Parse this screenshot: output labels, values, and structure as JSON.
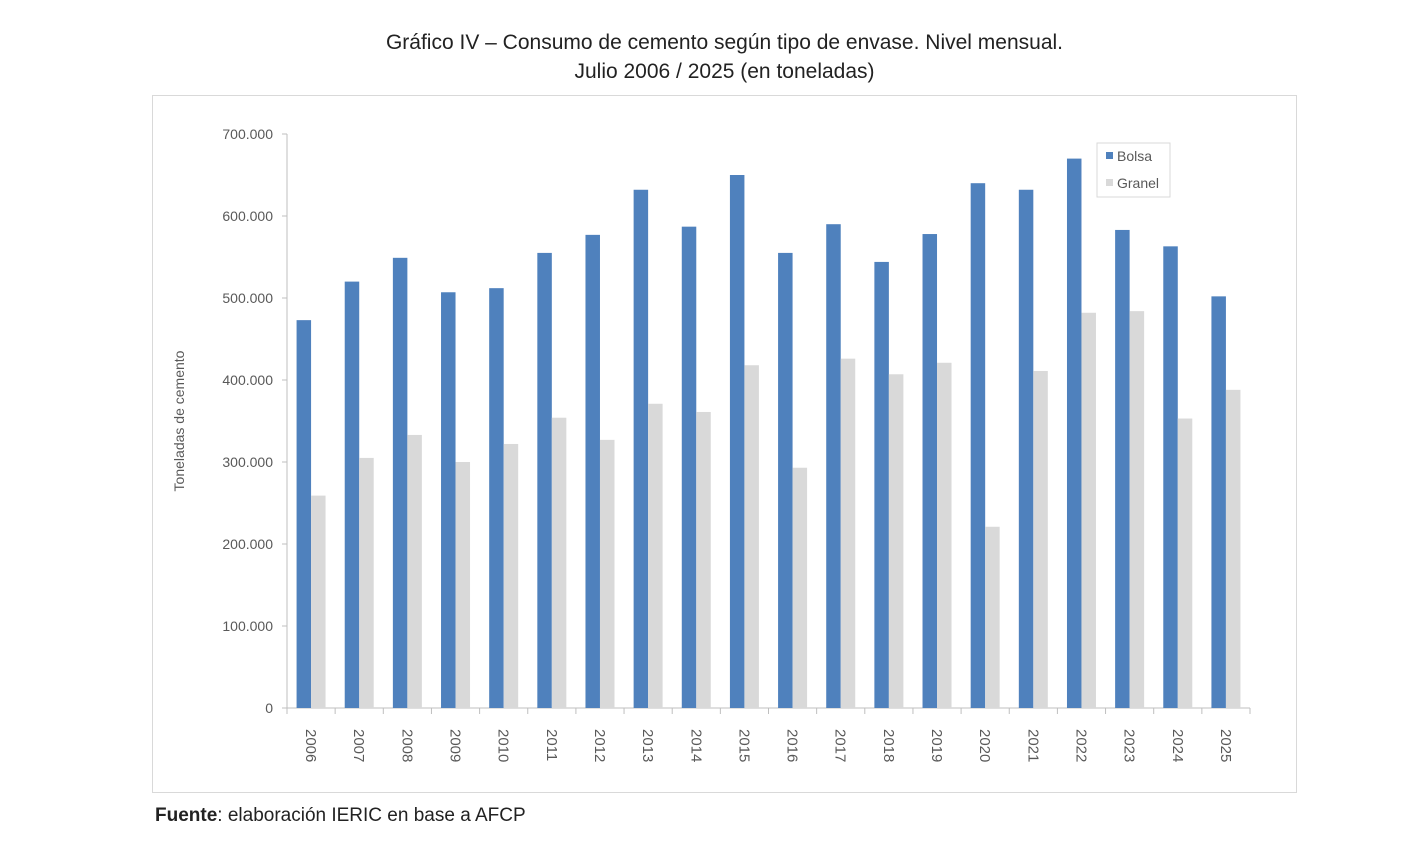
{
  "chart_data": {
    "type": "bar",
    "title": "Gráfico IV – Consumo de cemento según tipo de envase. Nivel mensual.",
    "subtitle": "Julio 2006 / 2025 (en toneladas)",
    "xlabel": "",
    "ylabel": "Toneladas de cemento",
    "ylim": [
      0,
      700000
    ],
    "yticks": [
      0,
      100000,
      200000,
      300000,
      400000,
      500000,
      600000,
      700000
    ],
    "ytick_labels": [
      "0",
      "100.000",
      "200.000",
      "300.000",
      "400.000",
      "500.000",
      "600.000",
      "700.000"
    ],
    "grid": false,
    "legend_position": "top-right",
    "categories": [
      "2006",
      "2007",
      "2008",
      "2009",
      "2010",
      "2011",
      "2012",
      "2013",
      "2014",
      "2015",
      "2016",
      "2017",
      "2018",
      "2019",
      "2020",
      "2021",
      "2022",
      "2023",
      "2024",
      "2025"
    ],
    "series": [
      {
        "name": "Bolsa",
        "color": "#4f81bd",
        "values": [
          473000,
          520000,
          549000,
          507000,
          512000,
          555000,
          577000,
          632000,
          587000,
          650000,
          555000,
          590000,
          544000,
          578000,
          640000,
          632000,
          670000,
          583000,
          563000,
          502000
        ]
      },
      {
        "name": "Granel",
        "color": "#d9d9d9",
        "values": [
          259000,
          305000,
          333000,
          300000,
          322000,
          354000,
          327000,
          371000,
          361000,
          418000,
          293000,
          426000,
          407000,
          421000,
          221000,
          411000,
          482000,
          484000,
          353000,
          388000
        ]
      }
    ]
  },
  "source": {
    "label": "Fuente",
    "text": ": elaboración IERIC en base a AFCP"
  }
}
